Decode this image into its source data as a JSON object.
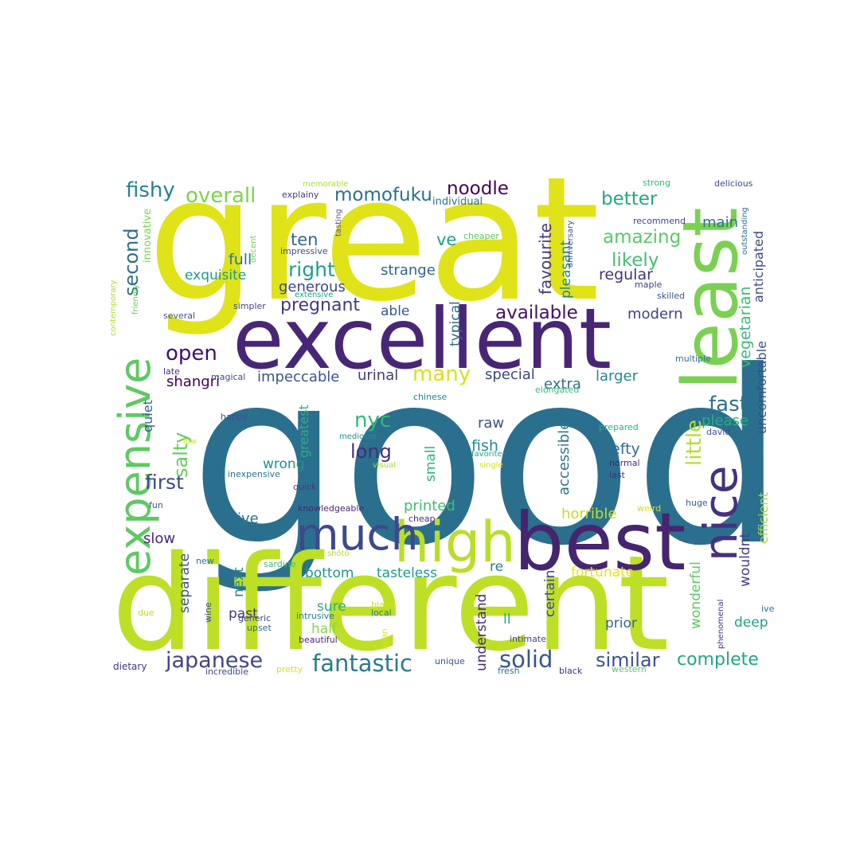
{
  "words": [
    {
      "text": "good",
      "color": "#2b6f8e",
      "size": 1
    },
    {
      "text": "great",
      "color": "#dfe318",
      "size": 2
    },
    {
      "text": "different",
      "color": "#bddf26",
      "size": 2
    },
    {
      "text": "excellent",
      "color": "#482677",
      "size": 3
    },
    {
      "text": "least",
      "color": "#7ad151",
      "size": 3
    },
    {
      "text": "best",
      "color": "#46256f",
      "size": 3
    },
    {
      "text": "high",
      "color": "#bade28",
      "size": 4
    },
    {
      "text": "much",
      "color": "#3e4989",
      "size": 4
    },
    {
      "text": "nice",
      "color": "#45327d",
      "size": 4
    },
    {
      "text": "expensive",
      "color": "#5ec962",
      "size": 4
    },
    {
      "text": "fantastic",
      "color": "#2a7b8e",
      "size": 5
    },
    {
      "text": "solid",
      "color": "#39568c",
      "size": 5
    },
    {
      "text": "japanese",
      "color": "#414487",
      "size": 5
    },
    {
      "text": "complete",
      "color": "#21a585",
      "size": 5
    },
    {
      "text": "similar",
      "color": "#3b528b",
      "size": 5
    },
    {
      "text": "overall",
      "color": "#7cd250",
      "size": 5
    },
    {
      "text": "fishy",
      "color": "#26838f",
      "size": 5
    },
    {
      "text": "momofuku",
      "color": "#2e6e8e",
      "size": 5
    },
    {
      "text": "noodle",
      "color": "#440154",
      "size": 5
    },
    {
      "text": "better",
      "color": "#22a884",
      "size": 5
    },
    {
      "text": "amazing",
      "color": "#5ac864",
      "size": 5
    },
    {
      "text": "likely",
      "color": "#44bf70",
      "size": 5
    },
    {
      "text": "available",
      "color": "#471063",
      "size": 5
    },
    {
      "text": "open",
      "color": "#3b0f70",
      "size": 5
    },
    {
      "text": "right",
      "color": "#1f9e89",
      "size": 5
    },
    {
      "text": "pregnant",
      "color": "#443983",
      "size": 5
    },
    {
      "text": "little",
      "color": "#b5de2b",
      "size": 5
    },
    {
      "text": "fast",
      "color": "#2c728e",
      "size": 5
    },
    {
      "text": "first",
      "color": "#3e4a89",
      "size": 5
    },
    {
      "text": "many",
      "color": "#d8e219",
      "size": 5
    },
    {
      "text": "long",
      "color": "#472d7b",
      "size": 5
    },
    {
      "text": "nyc",
      "color": "#35b779",
      "size": 5
    },
    {
      "text": "salty",
      "color": "#65cb5e",
      "size": 5
    },
    {
      "text": "second",
      "color": "#2f6c8e",
      "size": 5
    },
    {
      "text": "favourite",
      "color": "#453882",
      "size": 6
    },
    {
      "text": "vegetarian",
      "color": "#3aba76",
      "size": 6
    },
    {
      "text": "ten",
      "color": "#31688e",
      "size": 6
    },
    {
      "text": "ve",
      "color": "#1fa187",
      "size": 6
    },
    {
      "text": "urchin",
      "color": "#2f6b8e",
      "size": 6
    },
    {
      "text": "anticipated",
      "color": "#3f4889",
      "size": 6
    },
    {
      "text": "uncomfortable",
      "color": "#3d4d8a",
      "size": 6
    },
    {
      "text": "main",
      "color": "#2c738e",
      "size": 6
    },
    {
      "text": "pleasant",
      "color": "#25848e",
      "size": 6
    },
    {
      "text": "full",
      "color": "#2a778e",
      "size": 6
    },
    {
      "text": "strange",
      "color": "#33638d",
      "size": 6
    },
    {
      "text": "regular",
      "color": "#46327e",
      "size": 6
    },
    {
      "text": "generous",
      "color": "#3f4788",
      "size": 6
    },
    {
      "text": "exquisite",
      "color": "#1e9b8a",
      "size": 6
    },
    {
      "text": "modern",
      "color": "#424186",
      "size": 6
    },
    {
      "text": "able",
      "color": "#38588c",
      "size": 6
    },
    {
      "text": "typical",
      "color": "#31678e",
      "size": 6
    },
    {
      "text": "impeccable",
      "color": "#39558c",
      "size": 6
    },
    {
      "text": "urinal",
      "color": "#443a83",
      "size": 6
    },
    {
      "text": "special",
      "color": "#404588",
      "size": 6
    },
    {
      "text": "extra",
      "color": "#2e6f8e",
      "size": 6
    },
    {
      "text": "larger",
      "color": "#23898e",
      "size": 6
    },
    {
      "text": "please",
      "color": "#28ae80",
      "size": 6
    },
    {
      "text": "shangri",
      "color": "#440154",
      "size": 6
    },
    {
      "text": "quiet",
      "color": "#34608d",
      "size": 6
    },
    {
      "text": "raw",
      "color": "#3c508b",
      "size": 6
    },
    {
      "text": "fish",
      "color": "#238a8d",
      "size": 6
    },
    {
      "text": "hefty",
      "color": "#2e6e8e",
      "size": 6
    },
    {
      "text": "accessible",
      "color": "#2a788e",
      "size": 6
    },
    {
      "text": "efficient",
      "color": "#a8db34",
      "size": 6
    },
    {
      "text": "wrong",
      "color": "#21918c",
      "size": 6
    },
    {
      "text": "small",
      "color": "#2fb47c",
      "size": 6
    },
    {
      "text": "greatest",
      "color": "#29af7f",
      "size": 6
    },
    {
      "text": "alive",
      "color": "#2c718e",
      "size": 6
    },
    {
      "text": "printed",
      "color": "#40bd72",
      "size": 6
    },
    {
      "text": "horrible",
      "color": "#c2df23",
      "size": 6
    },
    {
      "text": "slow",
      "color": "#482979",
      "size": 6
    },
    {
      "text": "wouldnt",
      "color": "#433e85",
      "size": 6
    },
    {
      "text": "separate",
      "color": "#3b528b",
      "size": 6
    },
    {
      "text": "next",
      "color": "#277f8e",
      "size": 6
    },
    {
      "text": "bottom",
      "color": "#1f968b",
      "size": 6
    },
    {
      "text": "tasteless",
      "color": "#1f9a8a",
      "size": 6
    },
    {
      "text": "re",
      "color": "#287d8e",
      "size": 6
    },
    {
      "text": "certain",
      "color": "#3e4a89",
      "size": 6
    },
    {
      "text": "fortunate",
      "color": "#e5e419",
      "size": 6
    },
    {
      "text": "wonderful",
      "color": "#5ec962",
      "size": 6
    },
    {
      "text": "understand",
      "color": "#482878",
      "size": 6
    },
    {
      "text": "past",
      "color": "#46337f",
      "size": 6
    },
    {
      "text": "half",
      "color": "#89d548",
      "size": 6
    },
    {
      "text": "sure",
      "color": "#25ab82",
      "size": 6
    },
    {
      "text": "ll",
      "color": "#22a884",
      "size": 6
    },
    {
      "text": "prior",
      "color": "#32658e",
      "size": 6
    },
    {
      "text": "deep",
      "color": "#1fa088",
      "size": 6
    },
    {
      "text": "innovative",
      "color": "#7ad151",
      "size": 7
    },
    {
      "text": "memorable",
      "color": "#b0dd2f",
      "size": 7
    },
    {
      "text": "explainy",
      "color": "#453882",
      "size": 7
    },
    {
      "text": "individual",
      "color": "#2c728e",
      "size": 7
    },
    {
      "text": "strong",
      "color": "#37b878",
      "size": 7
    },
    {
      "text": "delicious",
      "color": "#3e4a89",
      "size": 7
    },
    {
      "text": "recommend",
      "color": "#414487",
      "size": 7
    },
    {
      "text": "outstanding",
      "color": "#2e6e8e",
      "size": 7
    },
    {
      "text": "cheaper",
      "color": "#5cc863",
      "size": 7
    },
    {
      "text": "anniversary",
      "color": "#3b528b",
      "size": 7
    },
    {
      "text": "skilled",
      "color": "#3a548c",
      "size": 7
    },
    {
      "text": "maple",
      "color": "#433e85",
      "size": 7
    },
    {
      "text": "impressive",
      "color": "#3f4788",
      "size": 7
    },
    {
      "text": "extensive",
      "color": "#1fa187",
      "size": 7
    },
    {
      "text": "decent",
      "color": "#73d056",
      "size": 7
    },
    {
      "text": "tasting",
      "color": "#5a5a86",
      "size": 7
    },
    {
      "text": "simpler",
      "color": "#414487",
      "size": 7
    },
    {
      "text": "several",
      "color": "#3b528b",
      "size": 7
    },
    {
      "text": "contemporary",
      "color": "#addc30",
      "size": 7
    },
    {
      "text": "friendly",
      "color": "#6ccd5a",
      "size": 7
    },
    {
      "text": "multiple",
      "color": "#2d708e",
      "size": 7
    },
    {
      "text": "late",
      "color": "#472c7a",
      "size": 7
    },
    {
      "text": "magical",
      "color": "#3e4c8a",
      "size": 7
    },
    {
      "text": "chinese",
      "color": "#25848e",
      "size": 7
    },
    {
      "text": "elongated",
      "color": "#3aba76",
      "size": 7
    },
    {
      "text": "happy",
      "color": "#3b518b",
      "size": 7
    },
    {
      "text": "mediocre",
      "color": "#21918c",
      "size": 7
    },
    {
      "text": "visual",
      "color": "#a2da37",
      "size": 7
    },
    {
      "text": "favorite",
      "color": "#1fa188",
      "size": 7
    },
    {
      "text": "single",
      "color": "#d2e21b",
      "size": 7
    },
    {
      "text": "prepared",
      "color": "#2ab07f",
      "size": 7
    },
    {
      "text": "david",
      "color": "#3c4f8a",
      "size": 7
    },
    {
      "text": "normal",
      "color": "#482475",
      "size": 7
    },
    {
      "text": "last",
      "color": "#46317e",
      "size": 7
    },
    {
      "text": "low",
      "color": "#dde318",
      "size": 7
    },
    {
      "text": "inexpensive",
      "color": "#2d708e",
      "size": 7
    },
    {
      "text": "quick",
      "color": "#433d84",
      "size": 7
    },
    {
      "text": "knowledgeable",
      "color": "#482677",
      "size": 7
    },
    {
      "text": "cheap",
      "color": "#46307e",
      "size": 7
    },
    {
      "text": "fun",
      "color": "#39568c",
      "size": 7
    },
    {
      "text": "weird",
      "color": "#d0e11c",
      "size": 7
    },
    {
      "text": "huge",
      "color": "#33638d",
      "size": 7
    },
    {
      "text": "shōtō",
      "color": "#b8de29",
      "size": 7
    },
    {
      "text": "new",
      "color": "#2d718e",
      "size": 7
    },
    {
      "text": "sardine",
      "color": "#40bd72",
      "size": 7
    },
    {
      "text": "bland",
      "color": "#d5e21a",
      "size": 7
    },
    {
      "text": "local",
      "color": "#297a8e",
      "size": 7
    },
    {
      "text": "intrusive",
      "color": "#2a768e",
      "size": 7
    },
    {
      "text": "generic",
      "color": "#404588",
      "size": 7
    },
    {
      "text": "upset",
      "color": "#31678e",
      "size": 7
    },
    {
      "text": "wine",
      "color": "#3a538b",
      "size": 7
    },
    {
      "text": "due",
      "color": "#bade28",
      "size": 7
    },
    {
      "text": "asian",
      "color": "#d8e219",
      "size": 7
    },
    {
      "text": "phenomenal",
      "color": "#453581",
      "size": 7
    },
    {
      "text": "ive",
      "color": "#2d708e",
      "size": 7
    },
    {
      "text": "intimate",
      "color": "#3e4989",
      "size": 7
    },
    {
      "text": "beautiful",
      "color": "#482576",
      "size": 7
    },
    {
      "text": "dietary",
      "color": "#46327e",
      "size": 7
    },
    {
      "text": "incredible",
      "color": "#3f4788",
      "size": 7
    },
    {
      "text": "pretty",
      "color": "#d8e219",
      "size": 7
    },
    {
      "text": "unique",
      "color": "#3b528b",
      "size": 7
    },
    {
      "text": "fresh",
      "color": "#2c728e",
      "size": 7
    },
    {
      "text": "black",
      "color": "#472d7b",
      "size": 7
    },
    {
      "text": "western",
      "color": "#5ec962",
      "size": 7
    }
  ]
}
